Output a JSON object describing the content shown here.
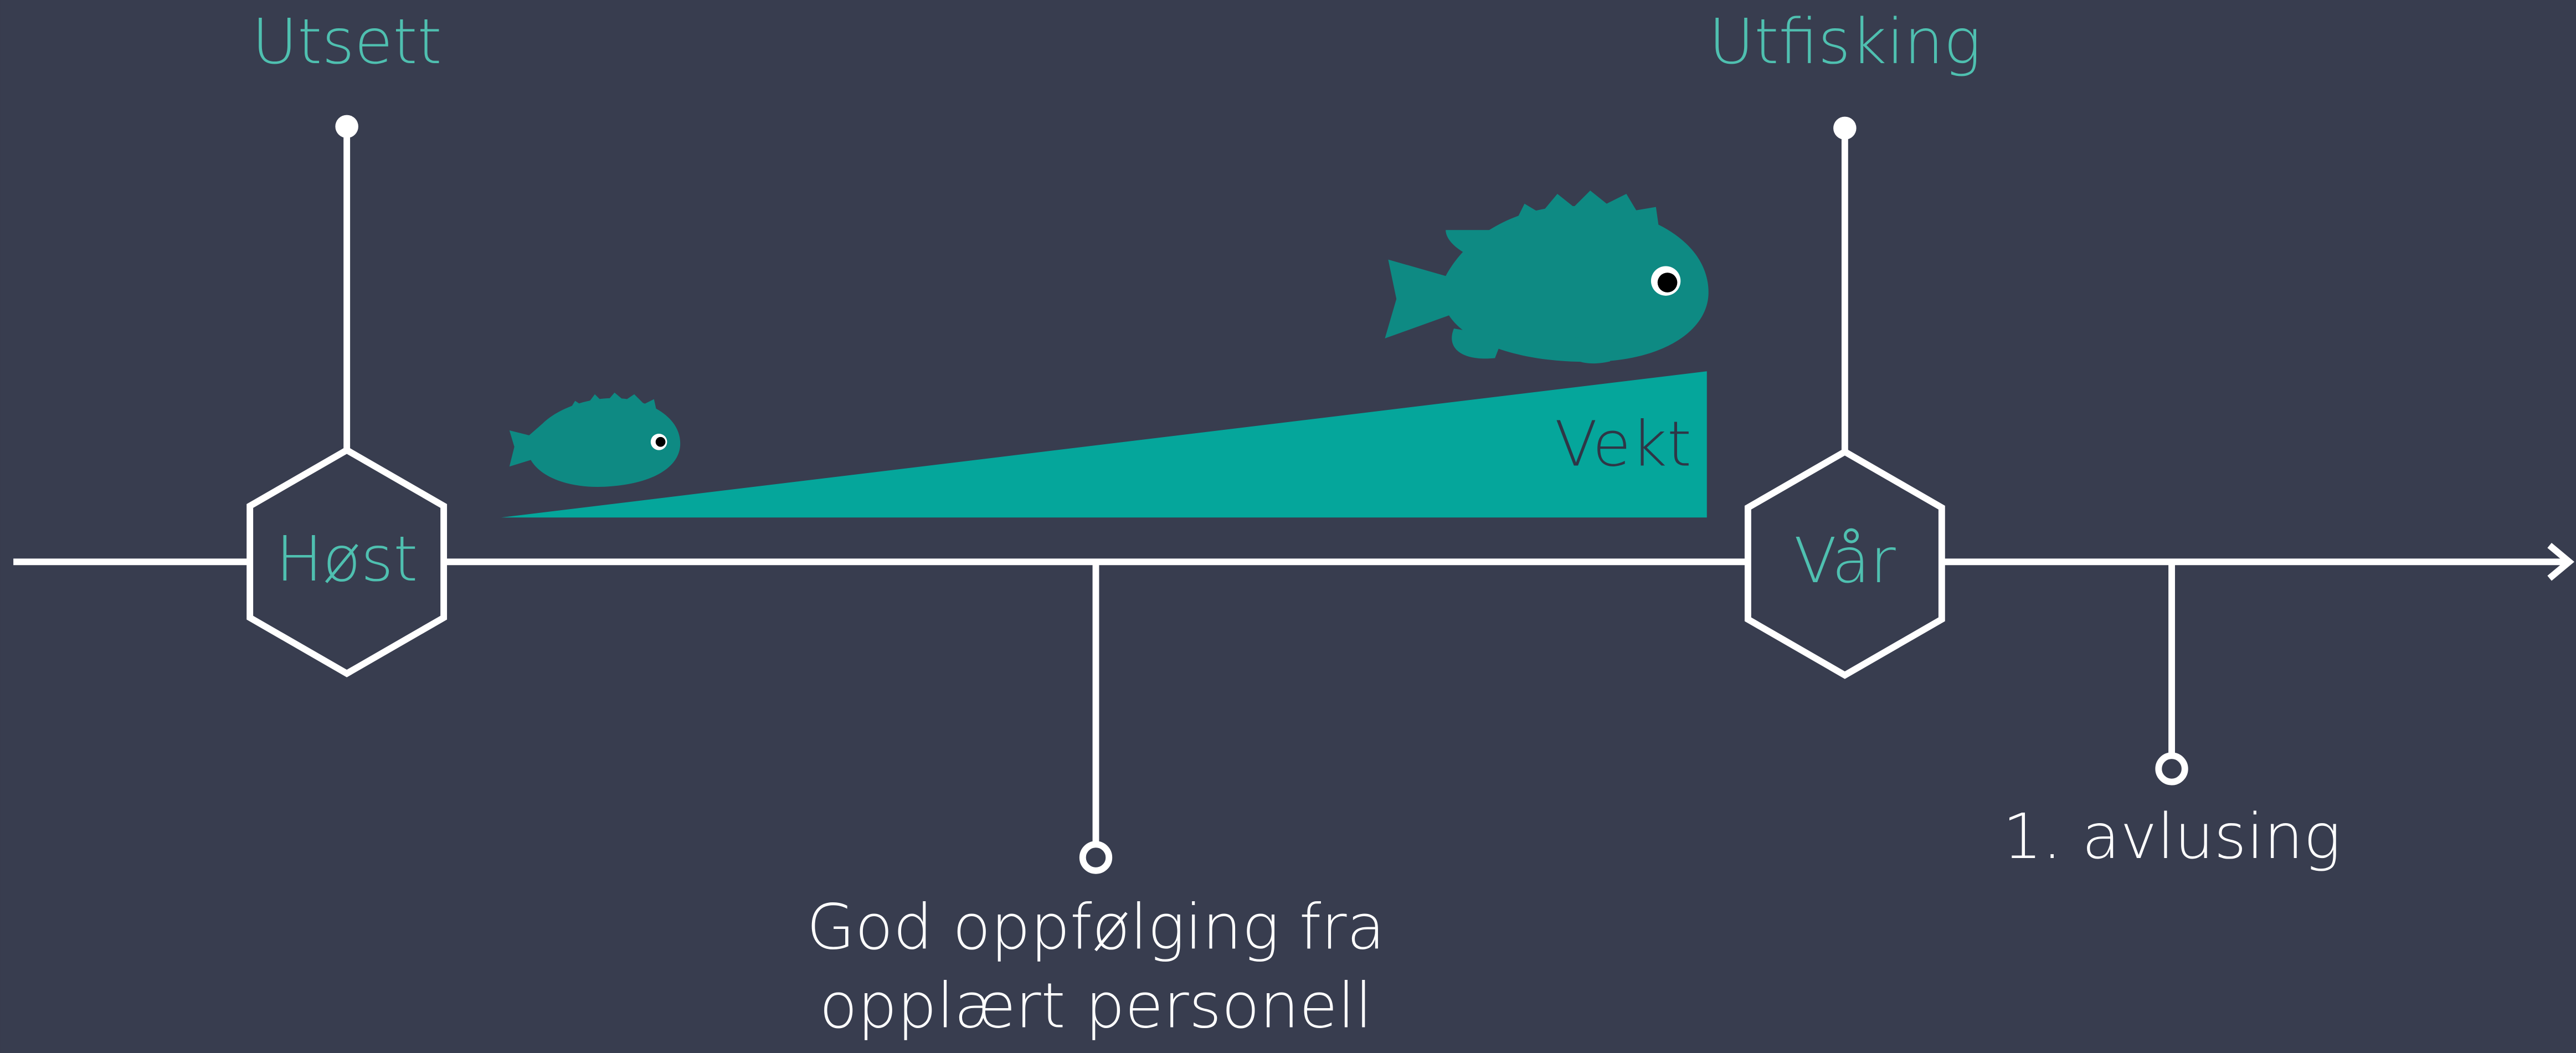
{
  "milestones": {
    "start": {
      "label": "Utsett",
      "season": "Høst"
    },
    "end": {
      "label": "Utfisking",
      "season": "Vår"
    }
  },
  "weight_label": "Vekt",
  "events": [
    {
      "label_lines": [
        "God oppfølging fra",
        "opplært personell"
      ]
    },
    {
      "label_lines": [
        "1. avlusing"
      ]
    }
  ]
}
